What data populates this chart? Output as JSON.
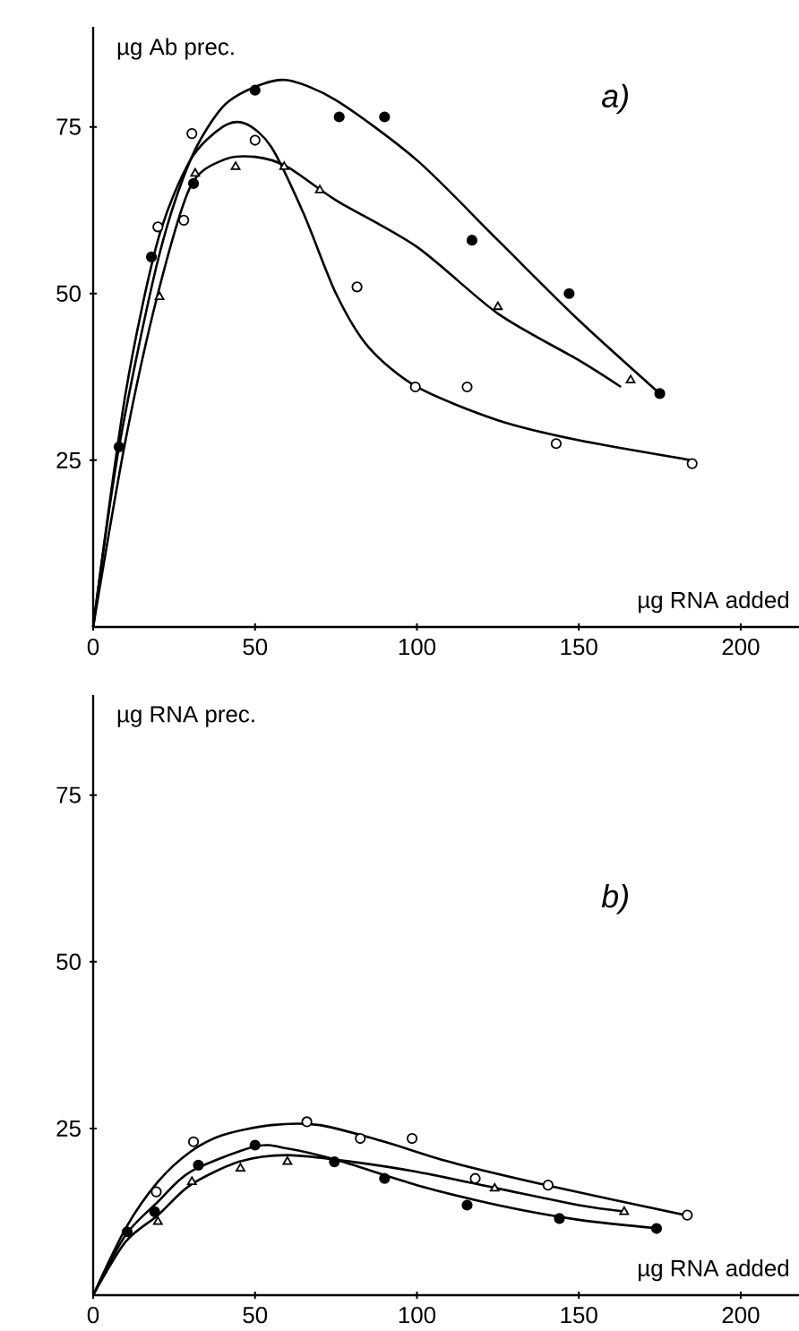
{
  "chart_data": [
    {
      "type": "scatter",
      "ylabel": "µg Ab prec.",
      "xlabel": "µg RNA added",
      "annotations": [
        "a)"
      ],
      "xlim": [
        0,
        218
      ],
      "ylim": [
        0,
        90
      ],
      "xticks": [
        0,
        50,
        100,
        150,
        200
      ],
      "yticks": [
        25,
        50,
        75
      ],
      "grid": false,
      "series": [
        {
          "marker": "circle",
          "color": "#000000",
          "x": [
            8,
            18,
            31,
            50,
            76,
            90,
            117,
            147,
            175
          ],
          "values": [
            27,
            55.5,
            66.5,
            80.5,
            76.5,
            76.5,
            58,
            50,
            35
          ]
        },
        {
          "marker": "circle",
          "color": "#ffffff",
          "x": [
            20,
            28,
            30.5,
            50,
            81.5,
            99.5,
            115.5,
            143,
            185
          ],
          "values": [
            60,
            61,
            74,
            73,
            51,
            36,
            36,
            27.5,
            24.5
          ]
        },
        {
          "marker": "triangle",
          "color": "#ffffff",
          "x": [
            20.5,
            31.5,
            44,
            59,
            70,
            125,
            166
          ],
          "values": [
            49.5,
            68,
            69,
            69,
            65.5,
            48,
            37
          ]
        },
        {
          "type": "line",
          "marker": "none",
          "color": "#000000",
          "x": [
            0,
            8,
            20,
            30,
            40,
            50,
            60,
            75,
            100,
            125,
            150,
            175
          ],
          "values": [
            0,
            27,
            55,
            70,
            78,
            81,
            82,
            79,
            70,
            58,
            46,
            35
          ]
        },
        {
          "type": "line",
          "marker": "none",
          "color": "#000000",
          "x": [
            0,
            10,
            20,
            30,
            40,
            47,
            55,
            65,
            75,
            85,
            100,
            125,
            150,
            185
          ],
          "values": [
            0,
            35,
            58,
            70,
            75,
            75.5,
            72,
            62,
            50,
            42,
            36,
            31,
            28,
            25
          ]
        },
        {
          "type": "line",
          "marker": "none",
          "color": "#000000",
          "x": [
            0,
            10,
            20,
            30,
            40,
            50,
            60,
            75,
            100,
            125,
            150,
            163
          ],
          "values": [
            0,
            28,
            50,
            66,
            70,
            70.5,
            69,
            64,
            57,
            47,
            40,
            36
          ]
        }
      ]
    },
    {
      "type": "scatter",
      "ylabel": "µg RNA prec.",
      "xlabel": "µg RNA added",
      "annotations": [
        "b)"
      ],
      "xlim": [
        0,
        218
      ],
      "ylim": [
        0,
        90
      ],
      "xticks": [
        0,
        50,
        100,
        150,
        200
      ],
      "yticks": [
        25,
        50,
        75
      ],
      "grid": false,
      "series": [
        {
          "marker": "circle",
          "color": "#ffffff",
          "x": [
            19.5,
            31,
            66,
            82.5,
            98.5,
            118,
            140.5,
            183.5
          ],
          "values": [
            15.5,
            23,
            26,
            23.5,
            23.5,
            17.5,
            16.5,
            12
          ]
        },
        {
          "marker": "circle",
          "color": "#000000",
          "x": [
            10.5,
            19,
            32.5,
            50,
            74.5,
            90,
            115.5,
            144,
            174
          ],
          "values": [
            9.5,
            12.5,
            19.5,
            22.5,
            20,
            17.5,
            13.5,
            11.5,
            10
          ]
        },
        {
          "marker": "triangle",
          "color": "#ffffff",
          "x": [
            20,
            30.5,
            45.5,
            60,
            124,
            164
          ],
          "values": [
            11,
            17,
            19,
            20,
            16,
            12.5
          ]
        },
        {
          "type": "line",
          "marker": "none",
          "color": "#000000",
          "x": [
            0,
            10,
            20,
            30,
            40,
            55,
            70,
            90,
            110,
            140,
            183
          ],
          "values": [
            0,
            10,
            17,
            21.5,
            24,
            25.5,
            25.5,
            23,
            20,
            16.5,
            12
          ]
        },
        {
          "type": "line",
          "marker": "none",
          "color": "#000000",
          "x": [
            0,
            10,
            20,
            30,
            50,
            60,
            75,
            100,
            125,
            150,
            175
          ],
          "values": [
            0,
            9,
            14,
            18.5,
            22.3,
            22,
            20.3,
            16.5,
            13.5,
            11.3,
            10
          ]
        },
        {
          "type": "line",
          "marker": "none",
          "color": "#000000",
          "x": [
            0,
            10,
            20,
            30,
            45,
            60,
            80,
            100,
            125,
            150,
            165
          ],
          "values": [
            0,
            8,
            12,
            16.5,
            20,
            21,
            20,
            18.5,
            16,
            13.5,
            12.5
          ]
        }
      ]
    }
  ]
}
